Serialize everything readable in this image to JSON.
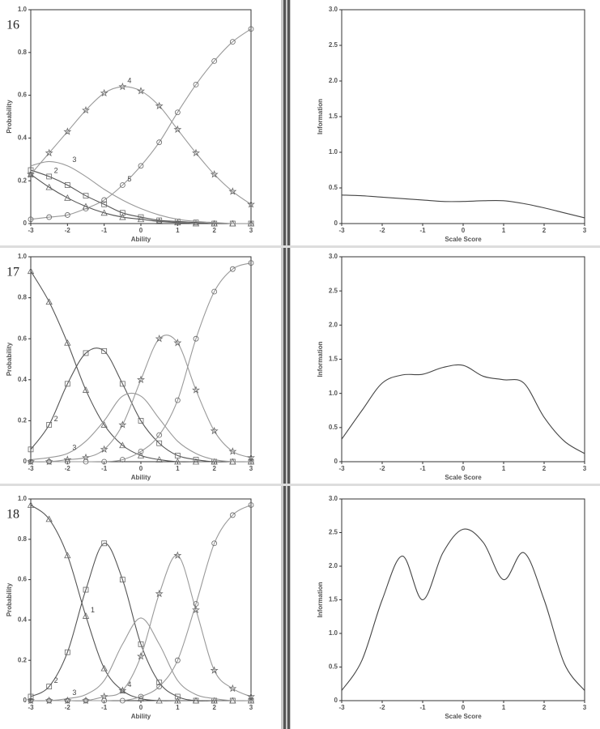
{
  "chart_data": [
    {
      "type": "line",
      "number": "16",
      "xlabel": "Ability",
      "ylabel": "Probability",
      "x": [
        -3,
        -2.5,
        -2,
        -1.5,
        -1,
        -0.5,
        0,
        0.5,
        1,
        1.5,
        2,
        2.5,
        3
      ],
      "xlim": [
        -3,
        3
      ],
      "xticks": [
        -3,
        -2,
        -1,
        0,
        1,
        2,
        3
      ],
      "ylim": [
        0,
        1
      ],
      "yticks": [
        0,
        0.2,
        0.4,
        0.6,
        0.8,
        {
          "value": 1,
          "label": "1.0"
        }
      ],
      "series": [
        {
          "marker": "triangle",
          "color": "#555555",
          "values": [
            0.23,
            0.17,
            0.12,
            0.08,
            0.05,
            0.03,
            0.02,
            0.01,
            0.005,
            0,
            0,
            0,
            0
          ]
        },
        {
          "name": "2",
          "marker": "square",
          "color": "#555555",
          "values": [
            0.25,
            0.22,
            0.18,
            0.13,
            0.09,
            0.05,
            0.03,
            0.015,
            0.01,
            0.005,
            0,
            0,
            0
          ]
        },
        {
          "name": "3",
          "marker": "none",
          "color": "#999999",
          "values": [
            0.27,
            0.29,
            0.27,
            0.22,
            0.16,
            0.11,
            0.07,
            0.04,
            0.02,
            0.01,
            0.005,
            0,
            0
          ]
        },
        {
          "name": "4",
          "marker": "star",
          "color": "#999999",
          "values": [
            0.23,
            0.33,
            0.43,
            0.53,
            0.61,
            0.64,
            0.62,
            0.55,
            0.44,
            0.33,
            0.23,
            0.15,
            0.09
          ]
        },
        {
          "name": "5",
          "marker": "circle",
          "color": "#999999",
          "values": [
            0.02,
            0.03,
            0.04,
            0.07,
            0.11,
            0.18,
            0.27,
            0.38,
            0.52,
            0.65,
            0.76,
            0.85,
            0.91
          ]
        }
      ]
    },
    {
      "type": "line",
      "xlabel": "Scale Score",
      "ylabel": "Information",
      "x": [
        -3,
        -2.5,
        -2,
        -1.5,
        -1,
        -0.5,
        0,
        0.5,
        1,
        1.5,
        2,
        2.5,
        3
      ],
      "xlim": [
        -3,
        3
      ],
      "xticks": [
        -3,
        -2,
        -1,
        0,
        1,
        2,
        3
      ],
      "ylim": [
        0,
        3
      ],
      "yticks": [
        0,
        0.5,
        {
          "value": 1,
          "label": "1.0"
        },
        1.5,
        {
          "value": 2,
          "label": "2.0"
        },
        2.5,
        {
          "value": 3,
          "label": "3.0"
        }
      ],
      "series": [
        {
          "marker": "none",
          "color": "#444444",
          "values": [
            0.4,
            0.39,
            0.37,
            0.35,
            0.33,
            0.31,
            0.31,
            0.32,
            0.32,
            0.28,
            0.22,
            0.15,
            0.08
          ]
        }
      ]
    },
    {
      "type": "line",
      "number": "17",
      "xlabel": "Ability",
      "ylabel": "Probability",
      "x": [
        -3,
        -2.5,
        -2,
        -1.5,
        -1,
        -0.5,
        0,
        0.5,
        1,
        1.5,
        2,
        2.5,
        3
      ],
      "xlim": [
        -3,
        3
      ],
      "xticks": [
        -3,
        -2,
        -1,
        0,
        1,
        2,
        3
      ],
      "ylim": [
        0,
        1
      ],
      "yticks": [
        0,
        0.2,
        0.4,
        0.6,
        0.8,
        {
          "value": 1,
          "label": "1.0"
        }
      ],
      "series": [
        {
          "marker": "triangle",
          "color": "#555555",
          "values": [
            0.93,
            0.78,
            0.58,
            0.35,
            0.18,
            0.08,
            0.03,
            0.01,
            0,
            0,
            0,
            0,
            0
          ]
        },
        {
          "name": "2",
          "marker": "square",
          "color": "#555555",
          "values": [
            0.06,
            0.18,
            0.38,
            0.53,
            0.54,
            0.38,
            0.2,
            0.09,
            0.03,
            0.01,
            0,
            0,
            0
          ]
        },
        {
          "name": "3",
          "marker": "none",
          "color": "#999999",
          "values": [
            0.01,
            0.02,
            0.04,
            0.1,
            0.2,
            0.32,
            0.32,
            0.21,
            0.1,
            0.04,
            0.01,
            0,
            0
          ]
        },
        {
          "marker": "star",
          "color": "#999999",
          "values": [
            0,
            0,
            0.01,
            0.02,
            0.06,
            0.18,
            0.4,
            0.6,
            0.58,
            0.35,
            0.15,
            0.05,
            0.02
          ]
        },
        {
          "marker": "circle",
          "color": "#999999",
          "values": [
            0,
            0,
            0,
            0,
            0,
            0.01,
            0.05,
            0.13,
            0.3,
            0.6,
            0.83,
            0.94,
            0.97
          ]
        }
      ]
    },
    {
      "type": "line",
      "xlabel": "Scale Score",
      "ylabel": "Information",
      "x": [
        -3,
        -2.5,
        -2,
        -1.5,
        -1,
        -0.5,
        0,
        0.5,
        1,
        1.5,
        2,
        2.5,
        3
      ],
      "xlim": [
        -3,
        3
      ],
      "xticks": [
        -3,
        -2,
        -1,
        0,
        1,
        2,
        3
      ],
      "ylim": [
        0,
        3
      ],
      "yticks": [
        0,
        0.5,
        {
          "value": 1,
          "label": "1.0"
        },
        1.5,
        {
          "value": 2,
          "label": "2.0"
        },
        2.5,
        {
          "value": 3,
          "label": "3.0"
        }
      ],
      "series": [
        {
          "marker": "none",
          "color": "#444444",
          "values": [
            0.33,
            0.75,
            1.15,
            1.27,
            1.28,
            1.38,
            1.41,
            1.25,
            1.2,
            1.15,
            0.65,
            0.3,
            0.12
          ]
        }
      ]
    },
    {
      "type": "line",
      "number": "18",
      "xlabel": "Ability",
      "ylabel": "Probability",
      "x": [
        -3,
        -2.5,
        -2,
        -1.5,
        -1,
        -0.5,
        0,
        0.5,
        1,
        1.5,
        2,
        2.5,
        3
      ],
      "xlim": [
        -3,
        3
      ],
      "xticks": [
        -3,
        -2,
        -1,
        0,
        1,
        2,
        3
      ],
      "ylim": [
        0,
        1
      ],
      "yticks": [
        0,
        0.2,
        0.4,
        0.6,
        0.8,
        {
          "value": 1,
          "label": "1.0"
        }
      ],
      "series": [
        {
          "name": "1",
          "marker": "triangle",
          "color": "#555555",
          "values": [
            0.97,
            0.9,
            0.72,
            0.42,
            0.16,
            0.05,
            0.01,
            0,
            0,
            0,
            0,
            0,
            0
          ]
        },
        {
          "name": "2",
          "marker": "square",
          "color": "#555555",
          "values": [
            0.02,
            0.07,
            0.24,
            0.55,
            0.78,
            0.6,
            0.28,
            0.09,
            0.02,
            0,
            0,
            0,
            0
          ]
        },
        {
          "name": "3",
          "marker": "none",
          "color": "#999999",
          "values": [
            0,
            0,
            0.01,
            0.03,
            0.1,
            0.28,
            0.41,
            0.28,
            0.1,
            0.03,
            0.01,
            0,
            0
          ]
        },
        {
          "name": "4",
          "marker": "star",
          "color": "#999999",
          "values": [
            0,
            0,
            0,
            0,
            0.02,
            0.05,
            0.22,
            0.53,
            0.72,
            0.45,
            0.15,
            0.06,
            0.02
          ]
        },
        {
          "marker": "circle",
          "color": "#999999",
          "values": [
            0,
            0,
            0,
            0,
            0,
            0,
            0.02,
            0.07,
            0.2,
            0.48,
            0.78,
            0.92,
            0.97
          ]
        }
      ]
    },
    {
      "type": "line",
      "xlabel": "Scale Score",
      "ylabel": "Information",
      "x": [
        -3,
        -2.5,
        -2,
        -1.5,
        -1,
        -0.5,
        0,
        0.5,
        1,
        1.5,
        2,
        2.5,
        3
      ],
      "xlim": [
        -3,
        3
      ],
      "xticks": [
        -3,
        -2,
        -1,
        0,
        1,
        2,
        3
      ],
      "ylim": [
        0,
        3
      ],
      "yticks": [
        0,
        0.5,
        {
          "value": 1,
          "label": "1.0"
        },
        1.5,
        {
          "value": 2,
          "label": "2.0"
        },
        2.5,
        {
          "value": 3,
          "label": "3.0"
        }
      ],
      "series": [
        {
          "marker": "none",
          "color": "#444444",
          "values": [
            0.15,
            0.6,
            1.5,
            2.15,
            1.5,
            2.2,
            2.55,
            2.35,
            1.8,
            2.2,
            1.5,
            0.55,
            0.15
          ]
        }
      ]
    }
  ]
}
